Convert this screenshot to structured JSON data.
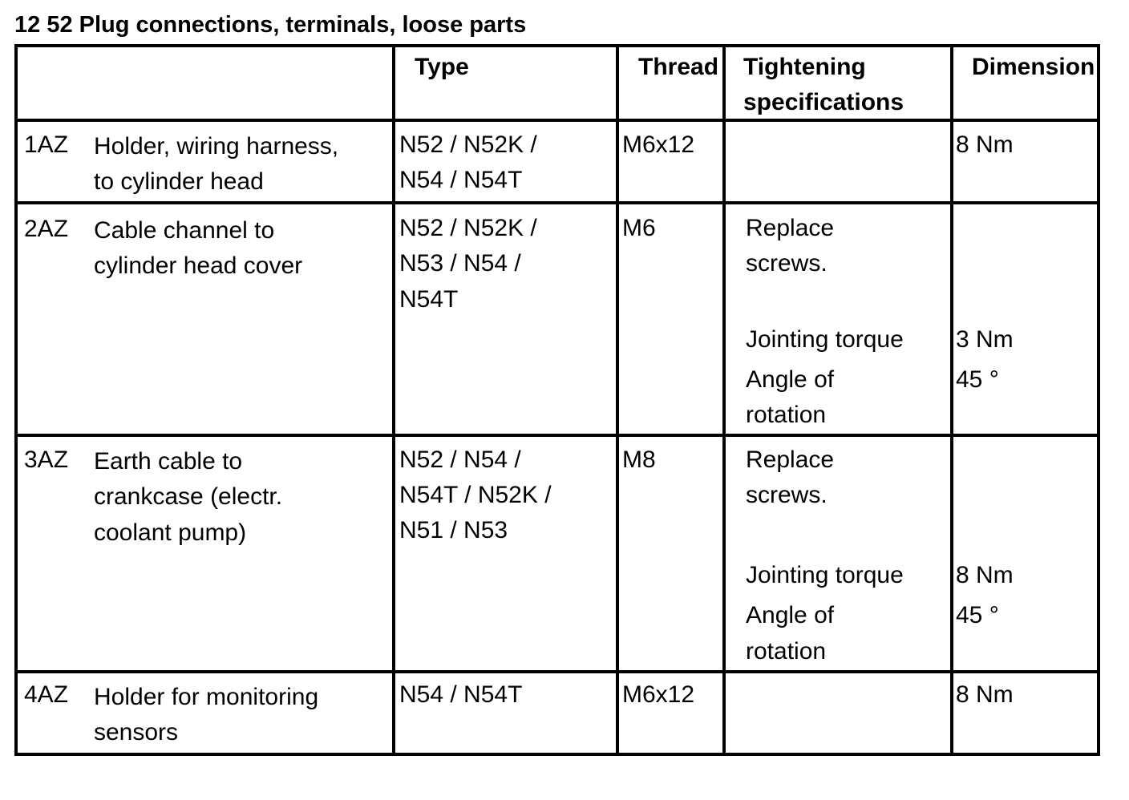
{
  "title": "12 52 Plug connections, terminals, loose parts",
  "headers": {
    "type": "Type",
    "thread": "Thread",
    "tightening_1": "Tightening",
    "tightening_2": "specifications",
    "dimension": "Dimension"
  },
  "rows": [
    {
      "id": "1AZ",
      "desc": [
        "Holder, wiring harness,",
        "to cylinder head"
      ],
      "type": [
        "N52 / N52K /",
        "N54 / N54T"
      ],
      "thread": "M6x12",
      "spec": [],
      "dim": [
        "8 Nm"
      ]
    },
    {
      "id": "2AZ",
      "desc": [
        "Cable channel to",
        "cylinder head cover"
      ],
      "type": [
        "N52 / N52K /",
        "N53 / N54 /",
        "N54T"
      ],
      "thread": "M6",
      "spec": [
        "Replace",
        "screws.",
        "Jointing torque",
        "Angle of",
        "rotation"
      ],
      "dim": [
        "3 Nm",
        "45 °"
      ]
    },
    {
      "id": "3AZ",
      "desc": [
        "Earth cable to",
        "crankcase (electr.",
        "coolant pump)"
      ],
      "type": [
        "N52 / N54 /",
        "N54T / N52K /",
        "N51 / N53"
      ],
      "thread": "M8",
      "spec": [
        "Replace",
        "screws.",
        "Jointing torque",
        "Angle of",
        "rotation"
      ],
      "dim": [
        "8 Nm",
        "45 °"
      ]
    },
    {
      "id": "4AZ",
      "desc": [
        "Holder for monitoring",
        "sensors"
      ],
      "type": [
        "N54 / N54T"
      ],
      "thread": "M6x12",
      "spec": [],
      "dim": [
        "8 Nm"
      ]
    }
  ]
}
